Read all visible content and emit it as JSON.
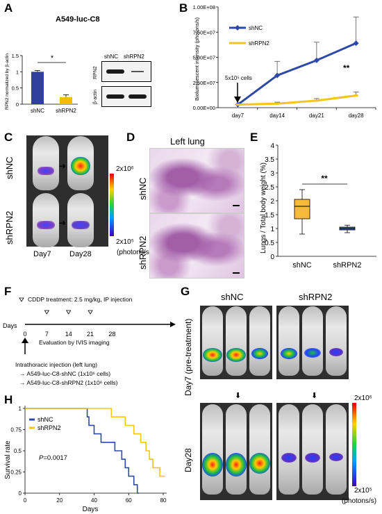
{
  "panels": {
    "A": "A",
    "B": "B",
    "C": "C",
    "D": "D",
    "E": "E",
    "F": "F",
    "G": "G",
    "H": "H"
  },
  "panelA": {
    "title": "A549-luc-C8",
    "ylabel": "RPN2 normalized by β-actin",
    "yticks": [
      "0",
      "0.5",
      "1",
      "1.5"
    ],
    "categories": [
      "shNC",
      "shRPN2"
    ],
    "values": [
      1.0,
      0.22
    ],
    "errors": [
      0.04,
      0.07
    ],
    "sig": "*",
    "blot": {
      "lanes": [
        "shNC",
        "shRPN2"
      ],
      "rows": [
        "RPN2",
        "β-actin"
      ]
    },
    "colors": {
      "shNC": "#3040a0",
      "shRPN2": "#f0c000"
    }
  },
  "chart_data": [
    {
      "type": "line",
      "ylabel": "Bioluminescent intensity (photons/s)",
      "categories": [
        "day7",
        "day14",
        "day21",
        "day28"
      ],
      "yticks": [
        "0.00E+00",
        "2.50E+07",
        "5.00E+07",
        "7.50E+07",
        "1.00E+08"
      ],
      "ylim": [
        0,
        100000000
      ],
      "series": [
        {
          "name": "shNC",
          "values": [
            3000000,
            32000000,
            47000000,
            64000000
          ],
          "errors": [
            0,
            14000000,
            18000000,
            26000000
          ],
          "color": "#2f4aa6"
        },
        {
          "name": "shRPN2",
          "values": [
            3000000,
            4000000,
            7000000,
            12000000
          ],
          "errors": [
            0,
            1500000,
            2000000,
            3500000
          ],
          "color": "#f5c518"
        }
      ],
      "annotation": "5x10⁵ cells",
      "sig": "**",
      "legend": "top-left"
    },
    {
      "type": "box",
      "ylabel": "Lungs / Total body weight (%)",
      "categories": [
        "shNC",
        "shRPN2"
      ],
      "yticks": [
        "0",
        "0.5",
        "1",
        "1.5",
        "2",
        "2.5",
        "3",
        "3.5",
        "4"
      ],
      "ylim": [
        0,
        4
      ],
      "boxes": [
        {
          "min": 0.8,
          "q1": 1.35,
          "median": 1.8,
          "q3": 2.05,
          "max": 2.4,
          "color": "#f7b93a"
        },
        {
          "min": 0.85,
          "q1": 0.95,
          "median": 1.0,
          "q3": 1.05,
          "max": 1.12,
          "color": "#4065c0"
        }
      ],
      "sig": "**"
    },
    {
      "type": "line",
      "ylabel": "Survival rate",
      "xlabel": "Days",
      "xticks": [
        "0",
        "20",
        "40",
        "60",
        "80"
      ],
      "yticks": [
        "0",
        "0.25",
        "0.5",
        "0.75",
        "1"
      ],
      "xlim": [
        0,
        82
      ],
      "ylim": [
        0,
        1
      ],
      "series": [
        {
          "name": "shNC",
          "color": "#2f4aa6",
          "steps": [
            [
              0,
              1
            ],
            [
              36,
              1
            ],
            [
              36,
              0.9
            ],
            [
              37,
              0.9
            ],
            [
              37,
              0.8
            ],
            [
              40,
              0.8
            ],
            [
              40,
              0.7
            ],
            [
              44,
              0.7
            ],
            [
              44,
              0.6
            ],
            [
              52,
              0.6
            ],
            [
              52,
              0.5
            ],
            [
              56,
              0.5
            ],
            [
              56,
              0.4
            ],
            [
              58,
              0.4
            ],
            [
              58,
              0.3
            ],
            [
              60,
              0.3
            ],
            [
              60,
              0.2
            ],
            [
              63,
              0.2
            ],
            [
              63,
              0.1
            ],
            [
              65,
              0.1
            ],
            [
              65,
              0.0
            ],
            [
              66,
              0
            ]
          ]
        },
        {
          "name": "shRPN2",
          "color": "#f5c518",
          "steps": [
            [
              0,
              1
            ],
            [
              50,
              1
            ],
            [
              50,
              0.9
            ],
            [
              58,
              0.9
            ],
            [
              58,
              0.8
            ],
            [
              63,
              0.8
            ],
            [
              63,
              0.7
            ],
            [
              67,
              0.7
            ],
            [
              67,
              0.6
            ],
            [
              70,
              0.6
            ],
            [
              70,
              0.5
            ],
            [
              72,
              0.5
            ],
            [
              72,
              0.4
            ],
            [
              74,
              0.4
            ],
            [
              74,
              0.3
            ],
            [
              78,
              0.3
            ],
            [
              78,
              0.2
            ],
            [
              81,
              0.2
            ]
          ]
        }
      ],
      "pvalue_prefix": "P",
      "pvalue": "=0.0017"
    }
  ],
  "panelC": {
    "rows": [
      "shNC",
      "shRPN2"
    ],
    "cols": [
      "Day7",
      "Day28"
    ],
    "scale_top": "2x10⁶",
    "scale_bottom": "2x10⁵",
    "unit": "(photons/s)"
  },
  "panelD": {
    "title": "Left lung",
    "rows": [
      "shNC",
      "shRPN2"
    ]
  },
  "panelF": {
    "cddp": "CDDP treatment: 2.5 mg/kg, IP injection",
    "days_label": "Days",
    "ticks": [
      "0",
      "7",
      "14",
      "21",
      "28"
    ],
    "eval": "Evaluation by IVIS imaging",
    "injection": "Intrathoracic injection (left lung)",
    "line1": "A549-luc-C8-shNC (1x10⁶ cells)",
    "line2": "A549-luc-C8-shRPN2 (1x10⁶ cells)"
  },
  "panelG": {
    "cols": [
      "shNC",
      "shRPN2"
    ],
    "rows": [
      "Day7 (pre-treatment)",
      "Day28"
    ],
    "scale_top": "2x10⁶",
    "scale_bottom": "2x10⁵",
    "unit": "(photons/s)"
  }
}
